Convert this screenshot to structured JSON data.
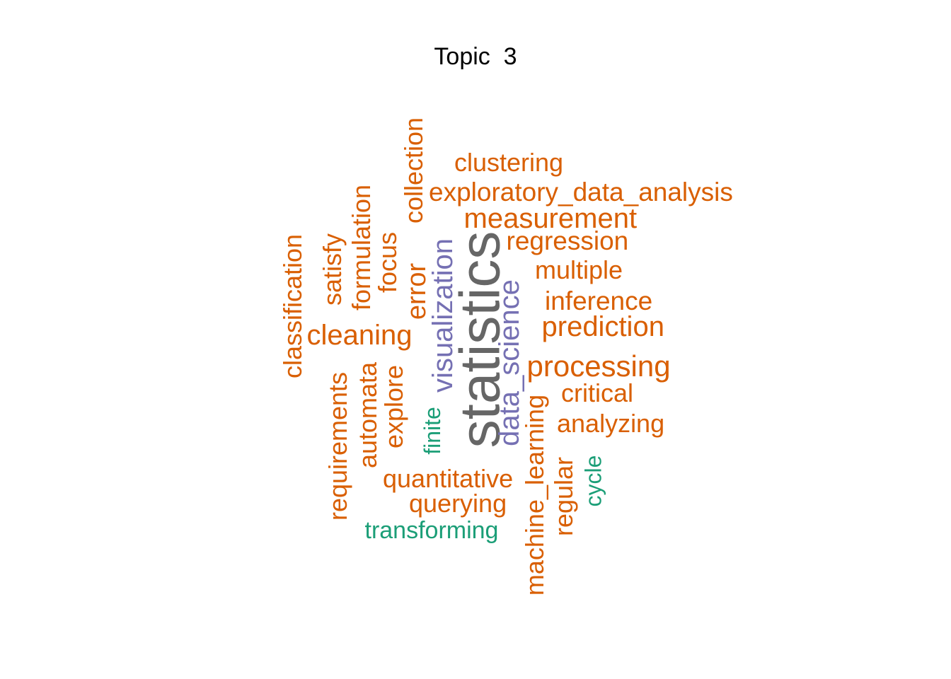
{
  "title": "Topic  3",
  "palette": {
    "orange": "#d95f02",
    "teal": "#1b9e77",
    "purple": "#7570b3",
    "gray": "#666666"
  },
  "words": [
    {
      "key": "statistics",
      "text": "statistics",
      "color": "gray"
    },
    {
      "key": "data_science",
      "text": "data_science",
      "color": "purple"
    },
    {
      "key": "visualization",
      "text": "visualization",
      "color": "purple"
    },
    {
      "key": "finite",
      "text": "finite",
      "color": "teal"
    },
    {
      "key": "cycle",
      "text": "cycle",
      "color": "teal"
    },
    {
      "key": "transforming",
      "text": "transforming",
      "color": "teal"
    },
    {
      "key": "processing",
      "text": "processing",
      "color": "orange"
    },
    {
      "key": "prediction",
      "text": "prediction",
      "color": "orange"
    },
    {
      "key": "cleaning",
      "text": "cleaning",
      "color": "orange"
    },
    {
      "key": "measurement",
      "text": "measurement",
      "color": "orange"
    },
    {
      "key": "exploratory_data_analysis",
      "text": "exploratory_data_analysis",
      "color": "orange"
    },
    {
      "key": "clustering",
      "text": "clustering",
      "color": "orange"
    },
    {
      "key": "regression",
      "text": "regression",
      "color": "orange"
    },
    {
      "key": "multiple",
      "text": "multiple",
      "color": "orange"
    },
    {
      "key": "inference",
      "text": "inference",
      "color": "orange"
    },
    {
      "key": "critical",
      "text": "critical",
      "color": "orange"
    },
    {
      "key": "analyzing",
      "text": "analyzing",
      "color": "orange"
    },
    {
      "key": "quantitative",
      "text": "quantitative",
      "color": "orange"
    },
    {
      "key": "querying",
      "text": "querying",
      "color": "orange"
    },
    {
      "key": "machine_learning",
      "text": "machine_learning",
      "color": "orange"
    },
    {
      "key": "regular",
      "text": "regular",
      "color": "orange"
    },
    {
      "key": "collection",
      "text": "collection",
      "color": "orange"
    },
    {
      "key": "error",
      "text": "error",
      "color": "orange"
    },
    {
      "key": "focus",
      "text": "focus",
      "color": "orange"
    },
    {
      "key": "formulation",
      "text": "formulation",
      "color": "orange"
    },
    {
      "key": "satisfy",
      "text": "satisfy",
      "color": "orange"
    },
    {
      "key": "classification",
      "text": "classification",
      "color": "orange"
    },
    {
      "key": "requirements",
      "text": "requirements",
      "color": "orange"
    },
    {
      "key": "automata",
      "text": "automata",
      "color": "orange"
    },
    {
      "key": "explore",
      "text": "explore",
      "color": "orange"
    }
  ]
}
